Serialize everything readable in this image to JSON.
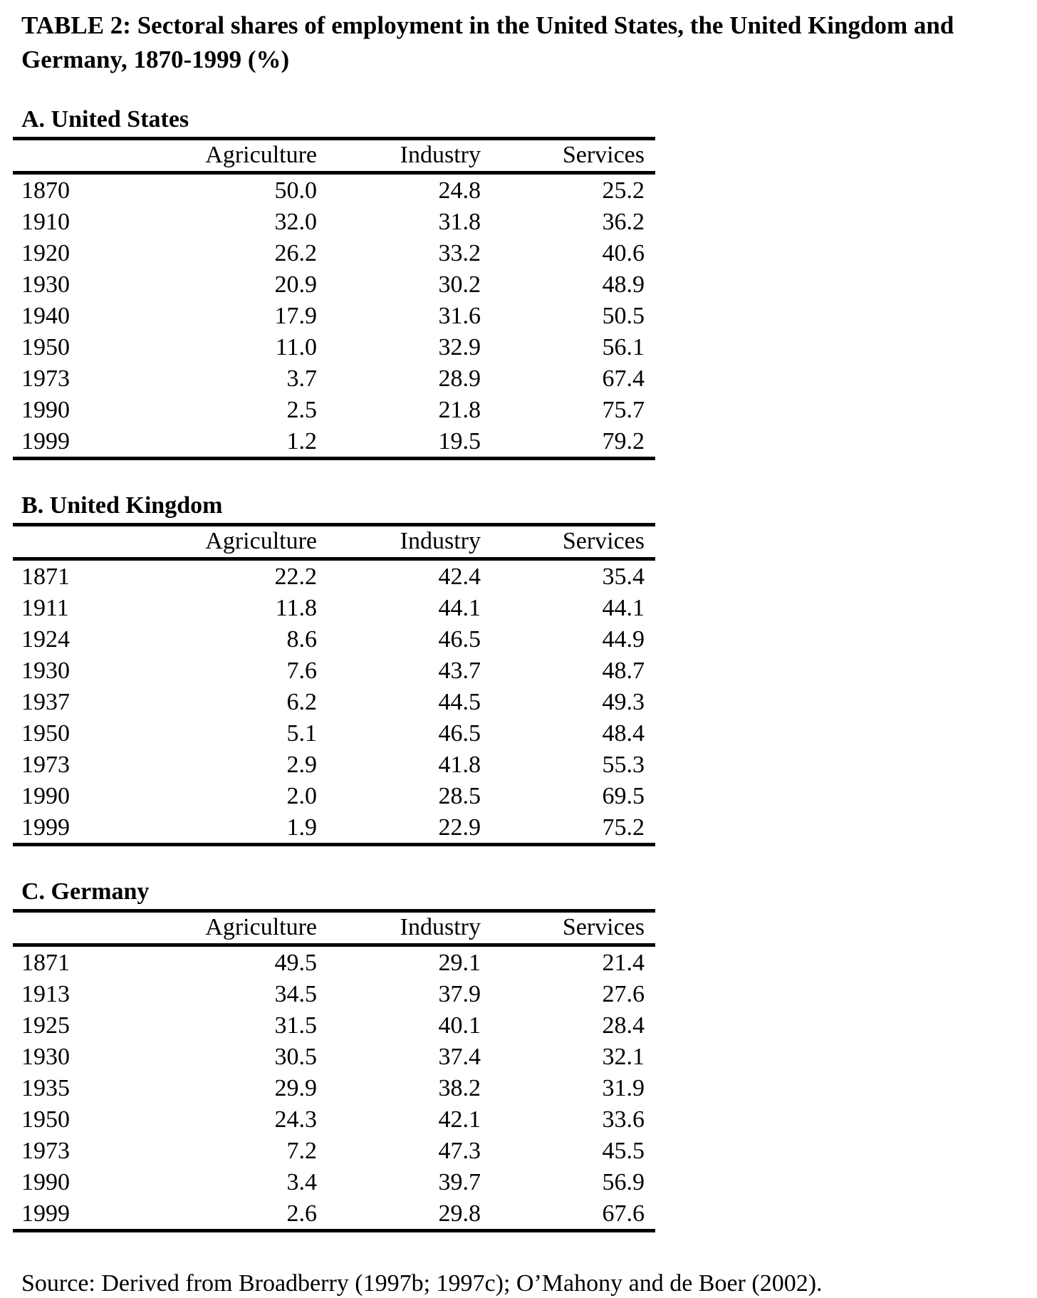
{
  "page": {
    "title_lines": [
      "TABLE 2: Sectoral shares of employment in the United States, the United Kingdom and",
      "Germany, 1870-1999 (%)"
    ],
    "source": "Source: Derived from Broadberry (1997b; 1997c); O’Mahony and de Boer (2002)."
  },
  "text_color": "#000000",
  "background_color": "#ffffff",
  "panels": [
    {
      "label": "A. United States",
      "columns": [
        "Agriculture",
        "Industry",
        "Services"
      ],
      "rows": [
        {
          "year": "1870",
          "agriculture": "50.0",
          "industry": "24.8",
          "services": "25.2"
        },
        {
          "year": "1910",
          "agriculture": "32.0",
          "industry": "31.8",
          "services": "36.2"
        },
        {
          "year": "1920",
          "agriculture": "26.2",
          "industry": "33.2",
          "services": "40.6"
        },
        {
          "year": "1930",
          "agriculture": "20.9",
          "industry": "30.2",
          "services": "48.9"
        },
        {
          "year": "1940",
          "agriculture": "17.9",
          "industry": "31.6",
          "services": "50.5"
        },
        {
          "year": "1950",
          "agriculture": "11.0",
          "industry": "32.9",
          "services": "56.1"
        },
        {
          "year": "1973",
          "agriculture": "3.7",
          "industry": "28.9",
          "services": "67.4"
        },
        {
          "year": "1990",
          "agriculture": "2.5",
          "industry": "21.8",
          "services": "75.7"
        },
        {
          "year": "1999",
          "agriculture": "1.2",
          "industry": "19.5",
          "services": "79.2"
        }
      ]
    },
    {
      "label": "B. United Kingdom",
      "columns": [
        "Agriculture",
        "Industry",
        "Services"
      ],
      "rows": [
        {
          "year": "1871",
          "agriculture": "22.2",
          "industry": "42.4",
          "services": "35.4"
        },
        {
          "year": "1911",
          "agriculture": "11.8",
          "industry": "44.1",
          "services": "44.1"
        },
        {
          "year": "1924",
          "agriculture": "8.6",
          "industry": "46.5",
          "services": "44.9"
        },
        {
          "year": "1930",
          "agriculture": "7.6",
          "industry": "43.7",
          "services": "48.7"
        },
        {
          "year": "1937",
          "agriculture": "6.2",
          "industry": "44.5",
          "services": "49.3"
        },
        {
          "year": "1950",
          "agriculture": "5.1",
          "industry": "46.5",
          "services": "48.4"
        },
        {
          "year": "1973",
          "agriculture": "2.9",
          "industry": "41.8",
          "services": "55.3"
        },
        {
          "year": "1990",
          "agriculture": "2.0",
          "industry": "28.5",
          "services": "69.5"
        },
        {
          "year": "1999",
          "agriculture": "1.9",
          "industry": "22.9",
          "services": "75.2"
        }
      ]
    },
    {
      "label": "C. Germany",
      "columns": [
        "Agriculture",
        "Industry",
        "Services"
      ],
      "rows": [
        {
          "year": "1871",
          "agriculture": "49.5",
          "industry": "29.1",
          "services": "21.4"
        },
        {
          "year": "1913",
          "agriculture": "34.5",
          "industry": "37.9",
          "services": "27.6"
        },
        {
          "year": "1925",
          "agriculture": "31.5",
          "industry": "40.1",
          "services": "28.4"
        },
        {
          "year": "1930",
          "agriculture": "30.5",
          "industry": "37.4",
          "services": "32.1"
        },
        {
          "year": "1935",
          "agriculture": "29.9",
          "industry": "38.2",
          "services": "31.9"
        },
        {
          "year": "1950",
          "agriculture": "24.3",
          "industry": "42.1",
          "services": "33.6"
        },
        {
          "year": "1973",
          "agriculture": "7.2",
          "industry": "47.3",
          "services": "45.5"
        },
        {
          "year": "1990",
          "agriculture": "3.4",
          "industry": "39.7",
          "services": "56.9"
        },
        {
          "year": "1999",
          "agriculture": "2.6",
          "industry": "29.8",
          "services": "67.6"
        }
      ]
    }
  ]
}
